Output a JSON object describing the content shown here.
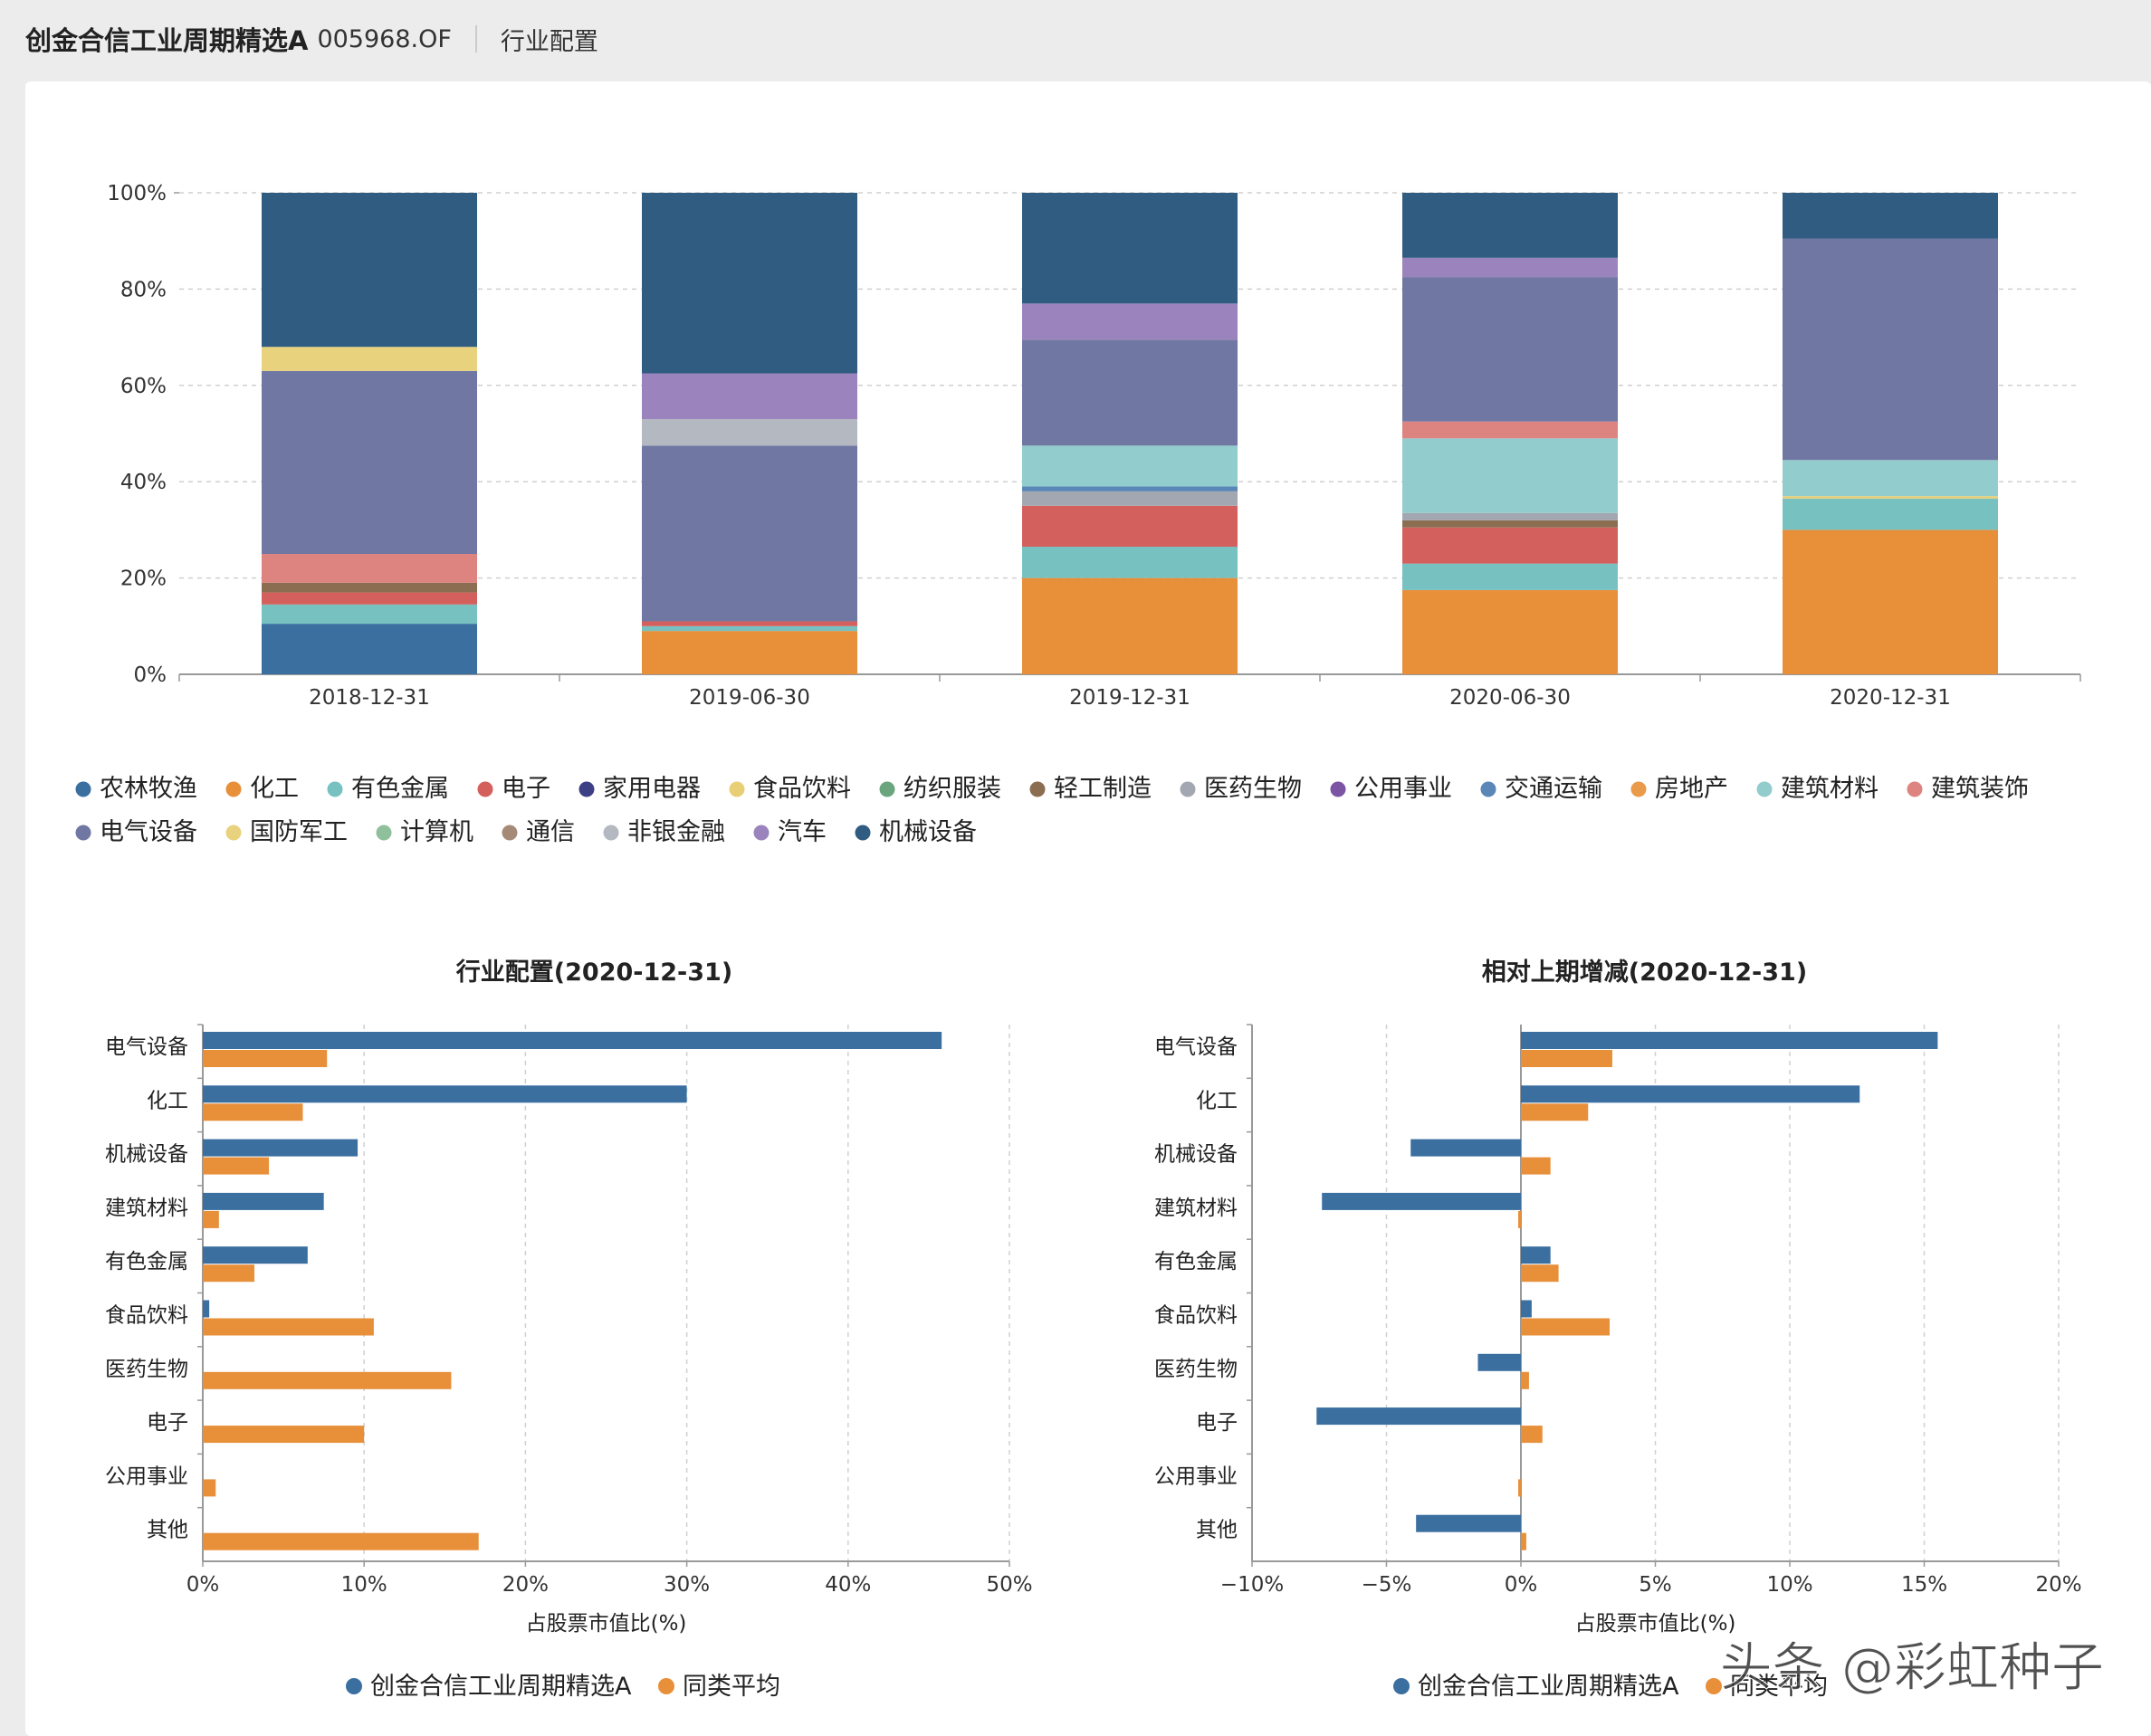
{
  "header": {
    "fund_name": "创金合信工业周期精选A",
    "fund_code": "005968.OF",
    "section": "行业配置"
  },
  "colors": {
    "blue": "#3a6fa0",
    "orange": "#e88f3a",
    "grid": "#d0d0d0"
  },
  "chart_data": [
    {
      "type": "bar",
      "stacked": true,
      "percent": true,
      "categories": [
        "2018-12-31",
        "2019-06-30",
        "2019-12-31",
        "2020-06-30",
        "2020-12-31"
      ],
      "ylim": [
        0,
        100
      ],
      "yticks": [
        "0%",
        "20%",
        "40%",
        "60%",
        "80%",
        "100%"
      ],
      "grid": "horizontal dashed",
      "legend_position": "bottom",
      "series": [
        {
          "name": "农林牧渔",
          "color": "#3a6fa0",
          "values": [
            10.5,
            0,
            0,
            0,
            0
          ]
        },
        {
          "name": "化工",
          "color": "#e88f3a",
          "values": [
            0,
            9,
            20,
            17.5,
            30
          ]
        },
        {
          "name": "有色金属",
          "color": "#77c1c1",
          "values": [
            4,
            1,
            6.5,
            5.5,
            6.5
          ]
        },
        {
          "name": "电子",
          "color": "#d4605e",
          "values": [
            2.5,
            1,
            8.5,
            7.5,
            0
          ]
        },
        {
          "name": "家用电器",
          "color": "#3d3f85",
          "values": [
            0,
            0,
            0,
            0,
            0
          ]
        },
        {
          "name": "食品饮料",
          "color": "#e8cf76",
          "values": [
            0,
            0,
            0,
            0,
            0.5
          ]
        },
        {
          "name": "纺织服装",
          "color": "#6aa57d",
          "values": [
            0,
            0,
            0,
            0,
            0
          ]
        },
        {
          "name": "轻工制造",
          "color": "#8b6e52",
          "values": [
            2,
            0,
            0,
            1.5,
            0
          ]
        },
        {
          "name": "医药生物",
          "color": "#a3a7b1",
          "values": [
            0,
            0,
            3,
            1.5,
            0
          ]
        },
        {
          "name": "公用事业",
          "color": "#7b55a3",
          "values": [
            0,
            0,
            0,
            0,
            0
          ]
        },
        {
          "name": "交通运输",
          "color": "#5a86b8",
          "values": [
            0,
            0,
            1,
            0,
            0
          ]
        },
        {
          "name": "房地产",
          "color": "#e99a4a",
          "values": [
            0,
            0,
            0,
            0,
            0
          ]
        },
        {
          "name": "建筑材料",
          "color": "#92cccc",
          "values": [
            0,
            0,
            8.5,
            15.5,
            7.5
          ]
        },
        {
          "name": "建筑装饰",
          "color": "#dd8480",
          "values": [
            6,
            0,
            0,
            3.5,
            0
          ]
        },
        {
          "name": "电气设备",
          "color": "#7077a2",
          "values": [
            38,
            36.5,
            22,
            30,
            46
          ]
        },
        {
          "name": "国防军工",
          "color": "#e8d27e",
          "values": [
            5,
            0,
            0,
            0,
            0
          ]
        },
        {
          "name": "计算机",
          "color": "#8fbf9b",
          "values": [
            0,
            0,
            0,
            0,
            0
          ]
        },
        {
          "name": "通信",
          "color": "#a68a78",
          "values": [
            0,
            0,
            0,
            0,
            0
          ]
        },
        {
          "name": "非银金融",
          "color": "#b4b8c0",
          "values": [
            0,
            5.5,
            0,
            0,
            0
          ]
        },
        {
          "name": "汽车",
          "color": "#9b84bd",
          "values": [
            0,
            9.5,
            7.5,
            4,
            0
          ]
        },
        {
          "name": "机械设备",
          "color": "#2f5c80",
          "values": [
            32,
            37.5,
            23,
            13.5,
            9.5
          ]
        }
      ]
    },
    {
      "type": "bar",
      "orientation": "horizontal",
      "title": "行业配置(2020-12-31)",
      "categories": [
        "电气设备",
        "化工",
        "机械设备",
        "建筑材料",
        "有色金属",
        "食品饮料",
        "医药生物",
        "电子",
        "公用事业",
        "其他"
      ],
      "xlabel": "占股票市值比(%)",
      "xlim": [
        0,
        50
      ],
      "xticks": [
        "0%",
        "10%",
        "20%",
        "30%",
        "40%",
        "50%"
      ],
      "grid": "vertical dashed",
      "legend_position": "bottom",
      "series": [
        {
          "name": "创金合信工业周期精选A",
          "color": "#3a6fa0",
          "values": [
            45.8,
            30.0,
            9.6,
            7.5,
            6.5,
            0.4,
            0,
            0,
            0,
            0
          ]
        },
        {
          "name": "同类平均",
          "color": "#e88f3a",
          "values": [
            7.7,
            6.2,
            4.1,
            1.0,
            3.2,
            10.6,
            15.4,
            10.0,
            0.8,
            17.1
          ]
        }
      ]
    },
    {
      "type": "bar",
      "orientation": "horizontal",
      "title": "相对上期增减(2020-12-31)",
      "categories": [
        "电气设备",
        "化工",
        "机械设备",
        "建筑材料",
        "有色金属",
        "食品饮料",
        "医药生物",
        "电子",
        "公用事业",
        "其他"
      ],
      "xlabel": "占股票市值比(%)",
      "xlim": [
        -10,
        20
      ],
      "xticks": [
        "−10%",
        "−5%",
        "0%",
        "5%",
        "10%",
        "15%",
        "20%"
      ],
      "grid": "vertical dashed",
      "legend_position": "bottom",
      "series": [
        {
          "name": "创金合信工业周期精选A",
          "color": "#3a6fa0",
          "values": [
            15.5,
            12.6,
            -4.1,
            -7.4,
            1.1,
            0.4,
            -1.6,
            -7.6,
            0,
            -3.9
          ]
        },
        {
          "name": "同类平均",
          "color": "#e88f3a",
          "values": [
            3.4,
            2.5,
            1.1,
            -0.1,
            1.4,
            3.3,
            0.3,
            0.8,
            -0.1,
            0.2
          ]
        }
      ]
    }
  ],
  "watermark": "头条 @彩虹种子"
}
